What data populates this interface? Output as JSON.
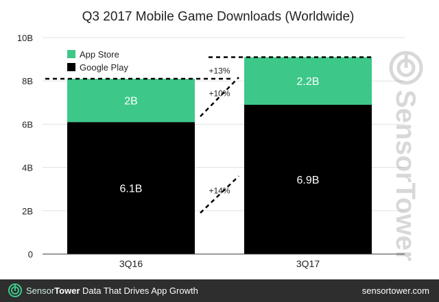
{
  "chart_data": {
    "type": "bar",
    "stacked": true,
    "title": "Q3 2017 Mobile Game Downloads (Worldwide)",
    "categories": [
      "3Q16",
      "3Q17"
    ],
    "series": [
      {
        "name": "Google Play",
        "values": [
          6.1,
          6.9
        ],
        "labels": [
          "6.1B",
          "6.9B"
        ],
        "color": "#000000"
      },
      {
        "name": "App Store",
        "values": [
          2.0,
          2.2
        ],
        "labels": [
          "2B",
          "2.2B"
        ],
        "color": "#3dc88a"
      }
    ],
    "ylim": [
      0,
      10
    ],
    "yticks": [
      0,
      2,
      4,
      6,
      8,
      10
    ],
    "ytick_labels": [
      "0",
      "2B",
      "4B",
      "6B",
      "8B",
      "10B"
    ],
    "legend_position": "top-left",
    "annotations": [
      {
        "text": "+13%",
        "refers_to": "total"
      },
      {
        "text": "+10%",
        "refers_to": "App Store"
      },
      {
        "text": "+14%",
        "refers_to": "Google Play"
      }
    ],
    "watermark": "SensorTower"
  },
  "footer": {
    "brand_part1": "Sensor",
    "brand_part2": "Tower",
    "tagline": "Data That Drives App Growth",
    "site": "sensortower.com"
  },
  "colors": {
    "app_store": "#3dc88a",
    "google_play": "#000000",
    "footer_bg": "#2e2e2e"
  }
}
